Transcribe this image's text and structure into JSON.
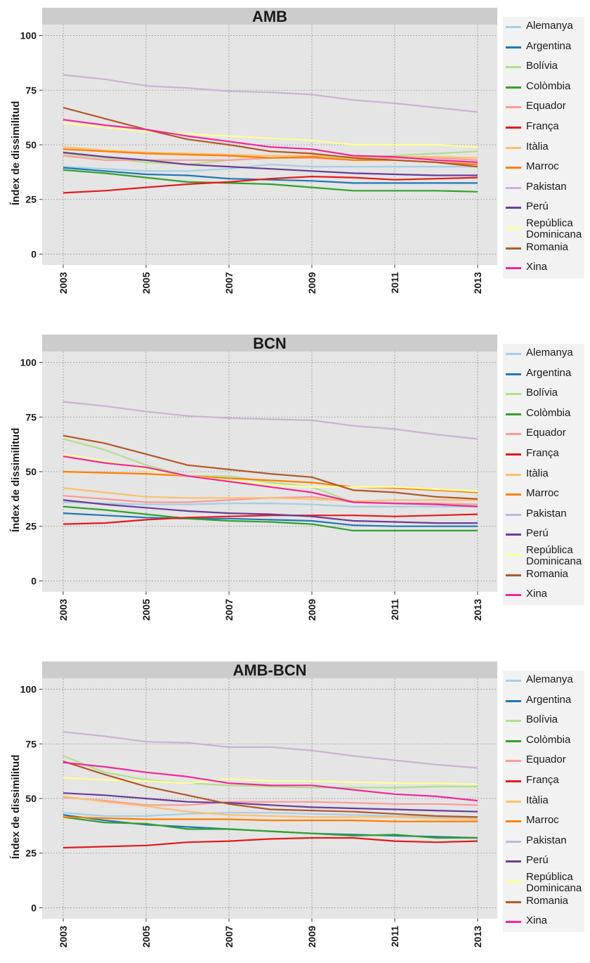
{
  "y_axis_label": "Índex de dissimilitud",
  "legend": [
    "Alemanya",
    "Argentina",
    "Bolívia",
    "Colòmbia",
    "Equador",
    "França",
    "Itàlia",
    "Marroc",
    "Pakistan",
    "Perú",
    "República\nDominicana",
    "Romania",
    "Xina"
  ],
  "colors": {
    "Alemanya": "#a6cee3",
    "Argentina": "#1f78b4",
    "Bolívia": "#b2df8a",
    "Colòmbia": "#33a02c",
    "Equador": "#fb9a99",
    "França": "#e31a1c",
    "Itàlia": "#fdbf6f",
    "Marroc": "#ff7f00",
    "Pakistan": "#cab2d6",
    "Perú": "#6a3d9a",
    "República Dominicana": "#ffff99",
    "Romania": "#b15928",
    "Xina": "#f0289a"
  },
  "chart_data": [
    {
      "type": "line",
      "title": "AMB",
      "xlabel": "",
      "ylabel": "Índex de dissimilitud",
      "x": [
        2003,
        2004,
        2005,
        2006,
        2007,
        2008,
        2009,
        2010,
        2011,
        2012,
        2013
      ],
      "xticks": [
        2003,
        2005,
        2007,
        2009,
        2011,
        2013
      ],
      "yticks": [
        0,
        25,
        50,
        75,
        100
      ],
      "ylim": [
        -5,
        105
      ],
      "grid": true,
      "legend_position": "right",
      "series": [
        {
          "name": "Alemanya",
          "values": [
            40,
            39,
            38,
            38,
            39,
            41,
            40,
            40,
            40,
            40,
            40
          ]
        },
        {
          "name": "Argentina",
          "values": [
            39.5,
            38,
            36.5,
            36,
            34.5,
            34,
            33.5,
            32.5,
            32.5,
            32.5,
            32.5
          ]
        },
        {
          "name": "Bolívia",
          "values": [
            46,
            44,
            42,
            41,
            43,
            44,
            44,
            44,
            45,
            46,
            47
          ]
        },
        {
          "name": "Colòmbia",
          "values": [
            38.5,
            37,
            35,
            33,
            32.5,
            32,
            30.5,
            29,
            29,
            29,
            28.5
          ]
        },
        {
          "name": "Equador",
          "values": [
            45,
            43,
            43,
            43,
            43,
            44,
            44,
            43,
            44,
            44,
            43
          ]
        },
        {
          "name": "França",
          "values": [
            28,
            29,
            30.5,
            32,
            33,
            34.5,
            35.5,
            35,
            34,
            34.5,
            35
          ]
        },
        {
          "name": "Itàlia",
          "values": [
            49,
            47.5,
            46.5,
            46,
            45.5,
            45,
            45,
            44.5,
            44.5,
            44.5,
            44
          ]
        },
        {
          "name": "Marroc",
          "values": [
            48,
            47,
            46,
            45.5,
            45,
            44,
            44.5,
            43,
            43,
            42,
            41
          ]
        },
        {
          "name": "Pakistan",
          "values": [
            82,
            80,
            77,
            76,
            74.5,
            74,
            73,
            70.5,
            69,
            67,
            65
          ]
        },
        {
          "name": "Perú",
          "values": [
            46.5,
            44.5,
            43,
            41,
            40,
            39,
            38,
            37,
            36.5,
            36,
            36
          ]
        },
        {
          "name": "República Dominicana",
          "values": [
            60,
            58,
            56,
            55,
            54,
            53,
            52,
            50,
            50,
            50,
            49
          ]
        },
        {
          "name": "Romania",
          "values": [
            67,
            62,
            57,
            52.5,
            50,
            47,
            46,
            44,
            43,
            42,
            40
          ]
        },
        {
          "name": "Xina",
          "values": [
            61.5,
            59,
            57,
            54,
            51.5,
            49,
            48,
            45,
            44.5,
            43,
            42
          ]
        }
      ]
    },
    {
      "type": "line",
      "title": "BCN",
      "xlabel": "",
      "ylabel": "Índex de dissimilitud",
      "x": [
        2003,
        2004,
        2005,
        2006,
        2007,
        2008,
        2009,
        2010,
        2011,
        2012,
        2013
      ],
      "xticks": [
        2003,
        2005,
        2007,
        2009,
        2011,
        2013
      ],
      "yticks": [
        0,
        25,
        50,
        75,
        100
      ],
      "ylim": [
        -5,
        105
      ],
      "grid": true,
      "legend_position": "right",
      "series": [
        {
          "name": "Alemanya",
          "values": [
            36,
            35.5,
            35,
            35,
            35.5,
            35.5,
            35,
            34,
            34,
            34,
            34
          ]
        },
        {
          "name": "Argentina",
          "values": [
            31,
            30,
            29,
            28.5,
            28.5,
            28,
            27.5,
            25.5,
            25,
            25,
            25
          ]
        },
        {
          "name": "Bolívia",
          "values": [
            65,
            60,
            53,
            48,
            48,
            45,
            43,
            36,
            35.5,
            35,
            34.5
          ]
        },
        {
          "name": "Colòmbia",
          "values": [
            34,
            32.5,
            30.5,
            28.5,
            27.5,
            27,
            26,
            23,
            23,
            23,
            23
          ]
        },
        {
          "name": "Equador",
          "values": [
            39,
            37.5,
            36,
            36,
            37,
            38,
            38.5,
            36,
            35.5,
            35.5,
            35
          ]
        },
        {
          "name": "França",
          "values": [
            26,
            26.5,
            28,
            29,
            29.5,
            30,
            30,
            30,
            29.5,
            30,
            30.5
          ]
        },
        {
          "name": "Itàlia",
          "values": [
            42.5,
            40.5,
            38.5,
            38,
            38,
            38,
            37.5,
            36.5,
            37,
            37,
            37
          ]
        },
        {
          "name": "Marroc",
          "values": [
            50,
            49.5,
            49,
            48,
            47,
            46,
            45,
            43,
            42.5,
            41.5,
            40.5
          ]
        },
        {
          "name": "Pakistan",
          "values": [
            82,
            80,
            77.5,
            75.5,
            74.5,
            74,
            73.5,
            71,
            69.5,
            67,
            65
          ]
        },
        {
          "name": "Perú",
          "values": [
            37,
            35,
            33.5,
            32,
            31,
            30.5,
            29.5,
            27.5,
            27,
            26.5,
            26.5
          ]
        },
        {
          "name": "República Dominicana",
          "values": [
            58,
            55,
            51,
            48,
            46,
            44,
            43,
            43,
            43,
            42,
            41
          ]
        },
        {
          "name": "Romania",
          "values": [
            66.5,
            63,
            58,
            53,
            51,
            49,
            47.5,
            41.5,
            40.5,
            38.5,
            37.5
          ]
        },
        {
          "name": "Xina",
          "values": [
            57,
            54,
            52,
            48,
            45.5,
            43,
            40.5,
            36,
            35.5,
            35,
            34
          ]
        }
      ]
    },
    {
      "type": "line",
      "title": "AMB-BCN",
      "xlabel": "",
      "ylabel": "Índex de dissimilitud",
      "x": [
        2003,
        2004,
        2005,
        2006,
        2007,
        2008,
        2009,
        2010,
        2011,
        2012,
        2013
      ],
      "xticks": [
        2003,
        2005,
        2007,
        2009,
        2011,
        2013
      ],
      "yticks": [
        0,
        25,
        50,
        75,
        100
      ],
      "ylim": [
        -5,
        105
      ],
      "grid": true,
      "legend_position": "right",
      "series": [
        {
          "name": "Alemanya",
          "values": [
            43.5,
            42,
            42,
            43,
            43.5,
            43.5,
            43,
            42.5,
            42,
            41.5,
            41
          ]
        },
        {
          "name": "Argentina",
          "values": [
            42.5,
            40,
            38,
            37,
            36,
            35,
            34,
            33.5,
            33,
            32.5,
            32
          ]
        },
        {
          "name": "Bolívia",
          "values": [
            69.5,
            62,
            58.5,
            57,
            56,
            55.5,
            55,
            55,
            55,
            55.5,
            55.5
          ]
        },
        {
          "name": "Colòmbia",
          "values": [
            41.5,
            39,
            38.5,
            36,
            36,
            35,
            34,
            33,
            33.5,
            32,
            32
          ]
        },
        {
          "name": "Equador",
          "values": [
            50.5,
            49,
            47,
            47,
            48.5,
            48.5,
            48.5,
            48,
            47.5,
            47.5,
            47
          ]
        },
        {
          "name": "França",
          "values": [
            27.5,
            28,
            28.5,
            30,
            30.5,
            31.5,
            32,
            32,
            30.5,
            30,
            30.5
          ]
        },
        {
          "name": "Itàlia",
          "values": [
            51,
            48.5,
            46.5,
            44,
            42.5,
            42,
            41.5,
            41.5,
            41.5,
            41,
            40.5
          ]
        },
        {
          "name": "Marroc",
          "values": [
            41.5,
            41,
            40.5,
            40.5,
            40.5,
            40,
            40,
            40,
            39.5,
            39.5,
            39.5
          ]
        },
        {
          "name": "Pakistan",
          "values": [
            80.5,
            78.5,
            76,
            75.5,
            73.5,
            73.5,
            72,
            69.5,
            67.5,
            65.5,
            64
          ]
        },
        {
          "name": "Perú",
          "values": [
            52.5,
            51.5,
            50,
            48.5,
            48,
            47,
            46,
            45.5,
            45,
            44.5,
            44
          ]
        },
        {
          "name": "República Dominicana",
          "values": [
            59.5,
            58.5,
            58,
            57,
            59,
            58,
            58,
            57.5,
            57,
            57,
            56.5
          ]
        },
        {
          "name": "Romania",
          "values": [
            67,
            61,
            55.5,
            51.5,
            47.5,
            45,
            44.5,
            44,
            43,
            42,
            41.5
          ]
        },
        {
          "name": "Xina",
          "values": [
            66.5,
            64.5,
            62,
            60,
            57,
            56,
            56,
            54,
            52,
            51,
            49
          ]
        }
      ]
    }
  ]
}
